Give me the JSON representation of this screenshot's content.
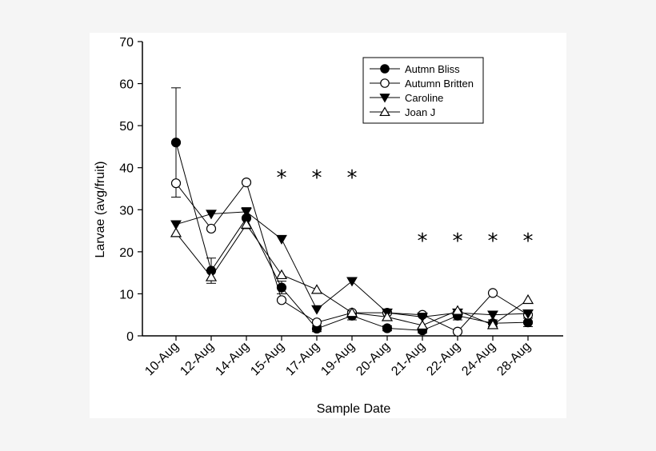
{
  "chart_data": {
    "type": "line",
    "title": "",
    "xlabel": "Sample Date",
    "ylabel": "Larvae (avg/fruit)",
    "ylim": [
      0,
      70
    ],
    "yticks": [
      "0",
      "10",
      "20",
      "30",
      "40",
      "50",
      "60",
      "70"
    ],
    "categories": [
      "10-Aug",
      "12-Aug",
      "14-Aug",
      "15-Aug",
      "17-Aug",
      "19-Aug",
      "20-Aug",
      "21-Aug",
      "22-Aug",
      "24-Aug",
      "28-Aug"
    ],
    "legend_position": "top-right",
    "grid": false,
    "series": [
      {
        "name": "Autmn Bliss",
        "marker": "filled-circle",
        "values": [
          46,
          15.5,
          28,
          11.5,
          1.7,
          4.8,
          1.8,
          1.3,
          4.8,
          3,
          3.2
        ],
        "errors": [
          13,
          3,
          2.5,
          1.5,
          0.7,
          1,
          0.6,
          0.6,
          1,
          0.8,
          1
        ]
      },
      {
        "name": "Autumn Britten",
        "marker": "open-circle",
        "values": [
          36.3,
          25.5,
          36.5,
          8.5,
          3.2,
          5.5,
          5.5,
          5,
          1,
          10.2,
          5
        ]
      },
      {
        "name": "Caroline",
        "marker": "filled-triangle-down",
        "values": [
          26.5,
          29,
          29.5,
          23,
          6.3,
          13,
          5.5,
          4.5,
          5.5,
          5,
          5.3
        ]
      },
      {
        "name": "Joan J",
        "marker": "open-triangle-up",
        "values": [
          24.5,
          14,
          26.5,
          14.5,
          11,
          5.5,
          4.5,
          2.5,
          6,
          2.6,
          8.6
        ]
      }
    ],
    "annotations": [
      {
        "label": "*",
        "category": "15-Aug"
      },
      {
        "label": "*",
        "category": "17-Aug"
      },
      {
        "label": "*",
        "category": "19-Aug"
      },
      {
        "label": "*",
        "category": "21-Aug"
      },
      {
        "label": "*",
        "category": "22-Aug"
      },
      {
        "label": "*",
        "category": "24-Aug"
      },
      {
        "label": "*",
        "category": "28-Aug"
      }
    ]
  }
}
